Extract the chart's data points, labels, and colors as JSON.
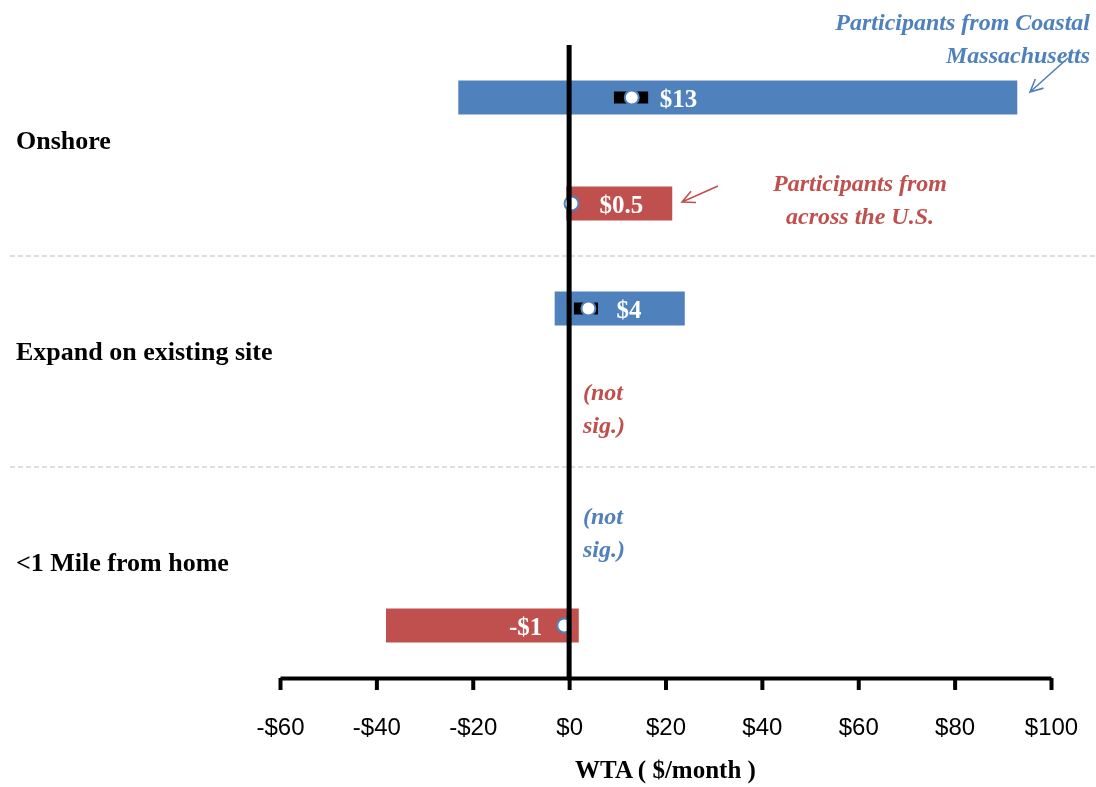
{
  "chart_data": {
    "type": "bar",
    "orientation": "horizontal",
    "xlabel": "WTA ( $/month )",
    "categories": [
      "Onshore",
      "Expand on existing site",
      "<1 Mile from home"
    ],
    "annotations": [
      "Participants from Coastal Massachusetts",
      "Participants from across the U.S.",
      "(not sig.)",
      "(not sig.)"
    ],
    "series": [
      {
        "color": "#4f81bd",
        "base": [
          -23,
          -3,
          null
        ],
        "values": [
          116,
          27,
          null
        ]
      },
      {
        "color": "#c0504d",
        "base": [
          -0.6,
          null,
          -38
        ],
        "values": [
          22,
          null,
          40
        ]
      },
      {
        "type": "scatter",
        "color": "#ffffff",
        "marker": "circle",
        "x": [
          "Onshore",
          "Expand on existing site",
          "<1 Mile from home"
        ],
        "values": [
          13,
          4,
          null
        ],
        "errors": [
          [
            9.3,
            16.4
          ],
          [
            1,
            6
          ],
          null
        ],
        "value_labels": [
          "$13",
          "$4",
          null
        ]
      },
      {
        "type": "scatter",
        "color": "#ffffff",
        "marker": "circle",
        "x": [
          "Onshore",
          "Expand on existing site",
          "<1 Mile from home"
        ],
        "values": [
          0.5,
          null,
          -1
        ],
        "value_labels": [
          "$0.5",
          null,
          "-$1"
        ]
      }
    ],
    "xlim": [
      -60,
      100
    ],
    "xticks": [
      {
        "value": -60,
        "label": "-$60"
      },
      {
        "value": -40,
        "label": "-$40"
      },
      {
        "value": -20,
        "label": "-$20"
      },
      {
        "value": 0,
        "label": "$0"
      },
      {
        "value": 20,
        "label": "$20"
      },
      {
        "value": 40,
        "label": "$40"
      },
      {
        "value": 60,
        "label": "$60"
      },
      {
        "value": 80,
        "label": "$80"
      },
      {
        "value": 100,
        "label": "$100"
      }
    ]
  }
}
